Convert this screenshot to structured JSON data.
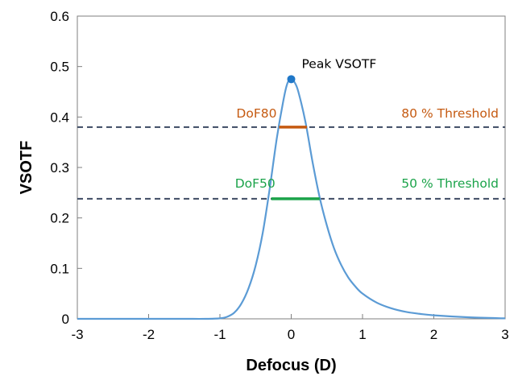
{
  "chart_data": {
    "type": "line",
    "xlabel": "Defocus (D)",
    "ylabel": "VSOTF",
    "xlim": [
      -3,
      3
    ],
    "ylim": [
      0,
      0.6
    ],
    "xticks": [
      "-3",
      "-2",
      "-1",
      "0",
      "1",
      "2",
      "3"
    ],
    "yticks": [
      "0",
      "0.1",
      "0.2",
      "0.3",
      "0.4",
      "0.5",
      "0.6"
    ],
    "grid": false,
    "series": [
      {
        "color": "#5B9BD5",
        "x": [
          -3,
          -2,
          -1.5,
          -1.2,
          -1.0,
          -0.9,
          -0.8,
          -0.7,
          -0.6,
          -0.5,
          -0.4,
          -0.3,
          -0.2,
          -0.1,
          -0.05,
          0,
          0.05,
          0.1,
          0.2,
          0.3,
          0.4,
          0.5,
          0.6,
          0.7,
          0.8,
          0.9,
          1.0,
          1.2,
          1.4,
          1.6,
          1.8,
          2.0,
          2.5,
          3.0
        ],
        "y": [
          0,
          0,
          0,
          0,
          0.001,
          0.004,
          0.012,
          0.03,
          0.06,
          0.105,
          0.17,
          0.26,
          0.36,
          0.44,
          0.468,
          0.475,
          0.468,
          0.45,
          0.39,
          0.31,
          0.24,
          0.185,
          0.14,
          0.107,
          0.082,
          0.064,
          0.05,
          0.032,
          0.021,
          0.014,
          0.01,
          0.007,
          0.003,
          0.001
        ]
      }
    ],
    "peak": {
      "x": 0,
      "y": 0.475,
      "label": "Peak VSOTF",
      "color": "#1F77C8"
    },
    "thresholds": [
      {
        "y": 0.38,
        "label": "80 % Threshold",
        "color": "#3D4A63",
        "label_color": "#C55A11"
      },
      {
        "y": 0.238,
        "label": "50 % Threshold",
        "color": "#3D4A63",
        "label_color": "#1BA34A"
      }
    ],
    "dof_segments": [
      {
        "label": "DoF80",
        "x1": -0.17,
        "x2": 0.22,
        "y": 0.38,
        "color": "#C55A11"
      },
      {
        "label": "DoF50",
        "x1": -0.28,
        "x2": 0.4,
        "y": 0.238,
        "color": "#1BA34A"
      }
    ]
  }
}
